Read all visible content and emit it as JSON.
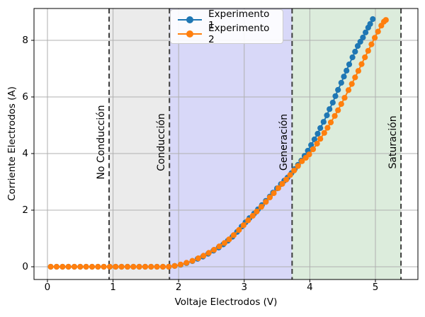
{
  "chart_data": {
    "type": "line",
    "title": "",
    "xlabel": "Voltaje Electrodos (V)",
    "ylabel": "Corriente Electrodos (A)",
    "xlim": [
      -0.205,
      5.648
    ],
    "ylim": [
      -0.45,
      9.125
    ],
    "x_ticks": [
      0,
      1,
      2,
      3,
      4,
      5
    ],
    "y_ticks": [
      0,
      2,
      4,
      6,
      8
    ],
    "grid": true,
    "grid_color": "#b0b0b0",
    "legend_position": "upper center",
    "boundary_line_style": {
      "color": "#3d3d3d",
      "dash": "7 4.5",
      "width": 2
    },
    "regions": [
      {
        "label": "No Conducción",
        "from": -0.205,
        "to": 0.94,
        "fill": "none"
      },
      {
        "label": "Conducción",
        "from": 0.94,
        "to": 1.86,
        "fill": "#ebebeb"
      },
      {
        "label": "Generación",
        "from": 1.86,
        "to": 3.73,
        "fill": "#d8d8f8"
      },
      {
        "label": "Saturación",
        "from": 3.73,
        "to": 5.39,
        "fill": "#dcecdc"
      }
    ],
    "series": [
      {
        "name": "Experimento 1",
        "color": "#1f77b4",
        "marker": "circle",
        "points": [
          [
            0.05,
            0
          ],
          [
            0.14,
            0
          ],
          [
            0.23,
            0
          ],
          [
            0.32,
            0
          ],
          [
            0.41,
            0
          ],
          [
            0.5,
            0
          ],
          [
            0.59,
            0
          ],
          [
            0.68,
            0
          ],
          [
            0.77,
            0
          ],
          [
            0.86,
            0
          ],
          [
            0.95,
            0
          ],
          [
            1.04,
            0
          ],
          [
            1.13,
            0
          ],
          [
            1.22,
            0
          ],
          [
            1.31,
            0
          ],
          [
            1.4,
            0
          ],
          [
            1.49,
            0
          ],
          [
            1.58,
            0
          ],
          [
            1.67,
            0
          ],
          [
            1.76,
            0
          ],
          [
            1.85,
            0
          ],
          [
            1.94,
            0.03
          ],
          [
            2.03,
            0.07
          ],
          [
            2.12,
            0.13
          ],
          [
            2.21,
            0.2
          ],
          [
            2.29,
            0.28
          ],
          [
            2.37,
            0.36
          ],
          [
            2.45,
            0.46
          ],
          [
            2.53,
            0.57
          ],
          [
            2.61,
            0.68
          ],
          [
            2.68,
            0.79
          ],
          [
            2.75,
            0.92
          ],
          [
            2.82,
            1.06
          ],
          [
            2.89,
            1.23
          ],
          [
            2.96,
            1.42
          ],
          [
            3.02,
            1.57
          ],
          [
            3.08,
            1.72
          ],
          [
            3.15,
            1.88
          ],
          [
            3.21,
            2.03
          ],
          [
            3.27,
            2.18
          ],
          [
            3.33,
            2.33
          ],
          [
            3.39,
            2.48
          ],
          [
            3.44,
            2.62
          ],
          [
            3.5,
            2.77
          ],
          [
            3.56,
            2.92
          ],
          [
            3.61,
            3.04
          ],
          [
            3.66,
            3.15
          ],
          [
            3.72,
            3.31
          ],
          [
            3.77,
            3.45
          ],
          [
            3.82,
            3.6
          ],
          [
            3.87,
            3.75
          ],
          [
            3.92,
            3.92
          ],
          [
            3.97,
            4.1
          ],
          [
            4.02,
            4.3
          ],
          [
            4.07,
            4.5
          ],
          [
            4.12,
            4.7
          ],
          [
            4.16,
            4.9
          ],
          [
            4.21,
            5.12
          ],
          [
            4.26,
            5.35
          ],
          [
            4.3,
            5.57
          ],
          [
            4.35,
            5.8
          ],
          [
            4.39,
            6.03
          ],
          [
            4.43,
            6.25
          ],
          [
            4.48,
            6.5
          ],
          [
            4.52,
            6.72
          ],
          [
            4.56,
            6.93
          ],
          [
            4.6,
            7.15
          ],
          [
            4.65,
            7.4
          ],
          [
            4.69,
            7.6
          ],
          [
            4.73,
            7.8
          ],
          [
            4.77,
            7.95
          ],
          [
            4.81,
            8.1
          ],
          [
            4.85,
            8.28
          ],
          [
            4.89,
            8.45
          ],
          [
            4.92,
            8.58
          ],
          [
            4.96,
            8.75
          ]
        ]
      },
      {
        "name": "Experimento 2",
        "color": "#ff7f0e",
        "marker": "circle",
        "points": [
          [
            0.05,
            0
          ],
          [
            0.14,
            0
          ],
          [
            0.23,
            0
          ],
          [
            0.32,
            0
          ],
          [
            0.41,
            0
          ],
          [
            0.5,
            0
          ],
          [
            0.59,
            0
          ],
          [
            0.68,
            0
          ],
          [
            0.77,
            0
          ],
          [
            0.86,
            0
          ],
          [
            0.95,
            0
          ],
          [
            1.04,
            0
          ],
          [
            1.13,
            0
          ],
          [
            1.22,
            0
          ],
          [
            1.31,
            0
          ],
          [
            1.4,
            0
          ],
          [
            1.49,
            0
          ],
          [
            1.58,
            0
          ],
          [
            1.67,
            0
          ],
          [
            1.76,
            0
          ],
          [
            1.85,
            0
          ],
          [
            1.94,
            0.03
          ],
          [
            2.03,
            0.08
          ],
          [
            2.12,
            0.14
          ],
          [
            2.21,
            0.21
          ],
          [
            2.3,
            0.3
          ],
          [
            2.38,
            0.39
          ],
          [
            2.46,
            0.49
          ],
          [
            2.54,
            0.6
          ],
          [
            2.62,
            0.72
          ],
          [
            2.7,
            0.84
          ],
          [
            2.77,
            0.97
          ],
          [
            2.84,
            1.12
          ],
          [
            2.92,
            1.3
          ],
          [
            2.99,
            1.47
          ],
          [
            3.06,
            1.64
          ],
          [
            3.13,
            1.8
          ],
          [
            3.19,
            1.95
          ],
          [
            3.26,
            2.12
          ],
          [
            3.33,
            2.29
          ],
          [
            3.39,
            2.45
          ],
          [
            3.45,
            2.6
          ],
          [
            3.52,
            2.78
          ],
          [
            3.58,
            2.93
          ],
          [
            3.64,
            3.08
          ],
          [
            3.7,
            3.24
          ],
          [
            3.76,
            3.4
          ],
          [
            3.82,
            3.56
          ],
          [
            3.88,
            3.73
          ],
          [
            3.94,
            3.85
          ],
          [
            3.99,
            3.97
          ],
          [
            4.05,
            4.15
          ],
          [
            4.11,
            4.35
          ],
          [
            4.16,
            4.52
          ],
          [
            4.22,
            4.73
          ],
          [
            4.27,
            4.91
          ],
          [
            4.32,
            5.1
          ],
          [
            4.38,
            5.33
          ],
          [
            4.43,
            5.53
          ],
          [
            4.48,
            5.75
          ],
          [
            4.53,
            5.97
          ],
          [
            4.59,
            6.24
          ],
          [
            4.64,
            6.46
          ],
          [
            4.69,
            6.69
          ],
          [
            4.74,
            6.92
          ],
          [
            4.79,
            7.16
          ],
          [
            4.84,
            7.4
          ],
          [
            4.89,
            7.63
          ],
          [
            4.94,
            7.86
          ],
          [
            4.99,
            8.09
          ],
          [
            5.04,
            8.31
          ],
          [
            5.09,
            8.52
          ],
          [
            5.13,
            8.66
          ],
          [
            5.16,
            8.72
          ]
        ]
      }
    ]
  }
}
